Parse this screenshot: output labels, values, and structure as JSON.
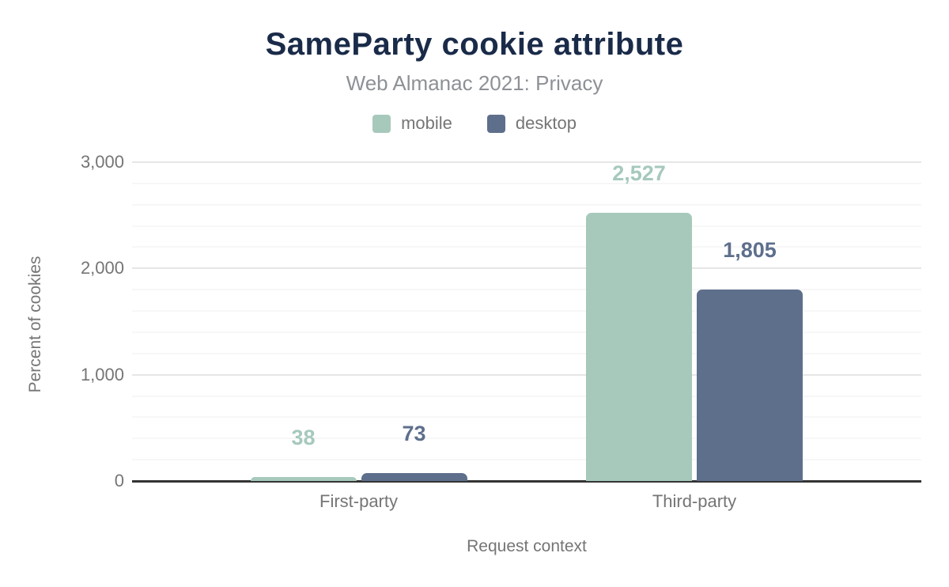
{
  "chart_data": {
    "type": "bar",
    "title": "SameParty cookie attribute",
    "subtitle": "Web Almanac 2021: Privacy",
    "categories": [
      "First-party",
      "Third-party"
    ],
    "series": [
      {
        "name": "mobile",
        "color": "#a6c9bb",
        "values": [
          38,
          2527
        ],
        "value_labels": [
          "38",
          "2,527"
        ]
      },
      {
        "name": "desktop",
        "color": "#5e6f8c",
        "values": [
          73,
          1805
        ],
        "value_labels": [
          "73",
          "1,805"
        ]
      }
    ],
    "xlabel": "Request context",
    "ylabel": "Percent of cookies",
    "ylim": [
      0,
      3000
    ],
    "yticks": [
      {
        "value": 0,
        "label": "0"
      },
      {
        "value": 1000,
        "label": "1,000"
      },
      {
        "value": 2000,
        "label": "2,000"
      },
      {
        "value": 3000,
        "label": "3,000"
      }
    ],
    "minor_grid_step": 200,
    "grid": "horizontal",
    "legend_position": "top"
  },
  "theme": {
    "background": "#ffffff",
    "title_color": "#1a2b49",
    "subtitle_color": "#8d9196",
    "axis_text_color": "#757575",
    "baseline_color": "#333333",
    "major_grid_color": "#e6e6e6",
    "minor_grid_color": "#f7f7f7"
  }
}
